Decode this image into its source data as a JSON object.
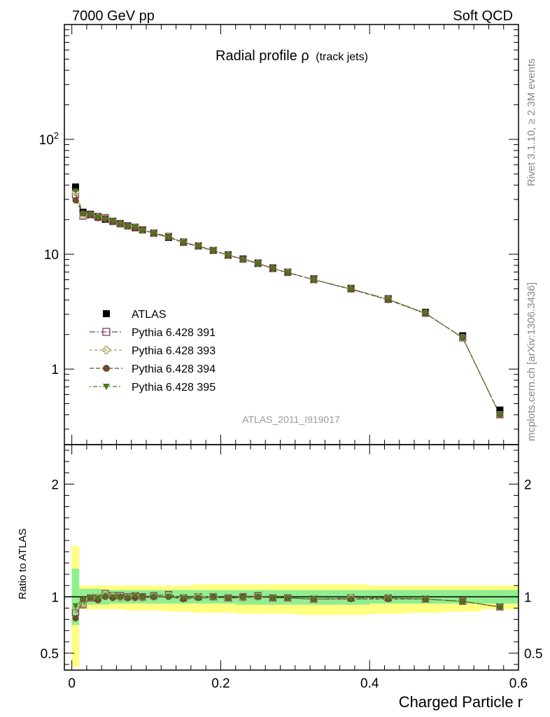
{
  "header": {
    "energy_label": "7000 GeV pp",
    "process_label": "Soft QCD"
  },
  "side_labels": {
    "rivet": "Rivet 3.1.10, ≥ 2.3M events",
    "mcplots": "mcplots.cern.ch [arXiv:1306.3436]"
  },
  "chart_data": [
    {
      "type": "scatter",
      "title": "Radial profile ρ",
      "subtitle": "(track jets)",
      "analysis_tag": "ATLAS_2011_I919017",
      "xlabel": "Charged Particle r",
      "ylabel": "",
      "xlim": [
        -0.01,
        0.6
      ],
      "ylim": [
        0.22,
        1000
      ],
      "yscale": "log",
      "y_tick_labels": [
        "1",
        "10",
        "10^2"
      ],
      "x_tick_labels": [
        "0",
        "0.2",
        "0.4",
        "0.6"
      ],
      "legend_position": "middle-left",
      "x": [
        0.005,
        0.015,
        0.025,
        0.035,
        0.045,
        0.055,
        0.065,
        0.075,
        0.085,
        0.095,
        0.11,
        0.13,
        0.15,
        0.17,
        0.19,
        0.21,
        0.23,
        0.25,
        0.27,
        0.29,
        0.325,
        0.375,
        0.425,
        0.475,
        0.525,
        0.575
      ],
      "series": [
        {
          "name": "ATLAS",
          "marker": "filled-square",
          "color": "#000000",
          "values": [
            38.5,
            23.2,
            22.3,
            21.3,
            20.2,
            19.3,
            18.4,
            17.7,
            17.0,
            16.3,
            15.2,
            14.0,
            12.8,
            11.8,
            10.8,
            9.9,
            9.1,
            8.3,
            7.6,
            7.0,
            6.1,
            5.05,
            4.1,
            3.12,
            1.95,
            0.44
          ]
        },
        {
          "name": "Pythia 6.428 391",
          "marker": "open-square",
          "color": "#7a3e5a",
          "values": [
            33.0,
            21.5,
            22.0,
            21.0,
            20.8,
            19.4,
            18.5,
            17.7,
            17.2,
            16.3,
            15.3,
            14.3,
            12.7,
            11.8,
            10.8,
            9.8,
            9.1,
            8.4,
            7.5,
            6.95,
            6.0,
            5.0,
            4.05,
            3.07,
            1.87,
            0.4
          ]
        },
        {
          "name": "Pythia 6.428 393",
          "marker": "open-cross",
          "color": "#a8a05a",
          "values": [
            34.5,
            21.8,
            22.0,
            21.1,
            20.5,
            19.5,
            18.3,
            17.5,
            17.2,
            16.2,
            15.2,
            14.2,
            12.7,
            11.8,
            10.8,
            9.8,
            9.0,
            8.3,
            7.5,
            6.95,
            6.0,
            5.0,
            4.05,
            3.05,
            1.88,
            0.4
          ]
        },
        {
          "name": "Pythia 6.428 394",
          "marker": "filled-circle",
          "color": "#6b4a2e",
          "values": [
            29.5,
            22.8,
            22.1,
            20.6,
            20.3,
            19.1,
            18.4,
            17.6,
            16.9,
            16.3,
            15.2,
            14.0,
            12.6,
            11.7,
            10.8,
            9.8,
            9.1,
            8.3,
            7.5,
            6.9,
            6.0,
            4.95,
            4.0,
            3.05,
            1.88,
            0.4
          ]
        },
        {
          "name": "Pythia 6.428 395",
          "marker": "filled-triangle-down",
          "color": "#4a7a1e",
          "values": [
            35.5,
            22.5,
            22.1,
            21.0,
            20.2,
            19.3,
            18.3,
            17.5,
            17.2,
            16.2,
            15.2,
            14.0,
            12.7,
            11.7,
            10.7,
            9.8,
            9.0,
            8.3,
            7.5,
            6.95,
            6.0,
            4.95,
            4.05,
            3.05,
            1.88,
            0.4
          ]
        }
      ]
    },
    {
      "type": "scatter",
      "title": "",
      "xlabel": "Charged Particle r",
      "ylabel": "Ratio to ATLAS",
      "xlim": [
        -0.01,
        0.6
      ],
      "ylim": [
        0.35,
        2.35
      ],
      "y_tick_labels": [
        "0.5",
        "1",
        "2"
      ],
      "x_tick_labels": [
        "0",
        "0.2",
        "0.4",
        "0.6"
      ],
      "reference_line": 1.0,
      "band_colors": {
        "inner": "#90ee90",
        "outer": "#ffff80"
      },
      "bands": {
        "x_edges": [
          0.0,
          0.01,
          0.02,
          0.03,
          0.04,
          0.05,
          0.06,
          0.07,
          0.08,
          0.09,
          0.1,
          0.12,
          0.14,
          0.16,
          0.18,
          0.2,
          0.22,
          0.24,
          0.26,
          0.28,
          0.3,
          0.35,
          0.4,
          0.45,
          0.5,
          0.55,
          0.6
        ],
        "inner_low": [
          0.75,
          0.92,
          0.93,
          0.93,
          0.93,
          0.94,
          0.94,
          0.94,
          0.94,
          0.94,
          0.94,
          0.94,
          0.94,
          0.94,
          0.94,
          0.94,
          0.93,
          0.93,
          0.93,
          0.93,
          0.93,
          0.93,
          0.94,
          0.94,
          0.94,
          0.94
        ],
        "inner_high": [
          1.25,
          1.07,
          1.07,
          1.07,
          1.06,
          1.06,
          1.06,
          1.06,
          1.06,
          1.06,
          1.06,
          1.06,
          1.06,
          1.06,
          1.06,
          1.06,
          1.06,
          1.06,
          1.06,
          1.06,
          1.06,
          1.06,
          1.06,
          1.06,
          1.06,
          1.06
        ],
        "outer_low": [
          0.38,
          0.89,
          0.89,
          0.89,
          0.89,
          0.89,
          0.89,
          0.88,
          0.88,
          0.88,
          0.88,
          0.87,
          0.87,
          0.86,
          0.86,
          0.86,
          0.85,
          0.85,
          0.85,
          0.85,
          0.84,
          0.84,
          0.85,
          0.86,
          0.87,
          0.89
        ],
        "outer_high": [
          1.45,
          1.1,
          1.1,
          1.1,
          1.1,
          1.1,
          1.1,
          1.1,
          1.1,
          1.1,
          1.1,
          1.1,
          1.1,
          1.11,
          1.11,
          1.11,
          1.11,
          1.11,
          1.11,
          1.11,
          1.11,
          1.11,
          1.1,
          1.1,
          1.1,
          1.1
        ]
      },
      "x": [
        0.005,
        0.015,
        0.025,
        0.035,
        0.045,
        0.055,
        0.065,
        0.075,
        0.085,
        0.095,
        0.11,
        0.13,
        0.15,
        0.17,
        0.19,
        0.21,
        0.23,
        0.25,
        0.27,
        0.29,
        0.325,
        0.375,
        0.425,
        0.475,
        0.525,
        0.575
      ],
      "series": [
        {
          "name": "Pythia 6.428 391",
          "marker": "open-square",
          "color": "#7a3e5a",
          "values": [
            0.86,
            0.93,
            0.99,
            0.99,
            1.03,
            1.01,
            1.01,
            1.0,
            1.01,
            1.0,
            1.01,
            1.02,
            0.99,
            1.0,
            1.0,
            0.99,
            1.0,
            1.01,
            0.99,
            0.99,
            0.98,
            0.99,
            0.99,
            0.98,
            0.96,
            0.91
          ]
        },
        {
          "name": "Pythia 6.428 393",
          "marker": "open-cross",
          "color": "#a8a05a",
          "values": [
            0.9,
            0.94,
            0.99,
            0.99,
            1.01,
            1.01,
            0.99,
            0.99,
            1.01,
            0.99,
            1.0,
            1.01,
            0.99,
            1.0,
            1.0,
            0.99,
            0.99,
            1.0,
            0.99,
            0.99,
            0.98,
            0.99,
            0.99,
            0.98,
            0.96,
            0.91
          ]
        },
        {
          "name": "Pythia 6.428 394",
          "marker": "filled-circle",
          "color": "#6b4a2e",
          "values": [
            0.81,
            0.98,
            0.99,
            0.97,
            1.0,
            0.99,
            1.0,
            0.99,
            0.99,
            1.0,
            1.0,
            1.0,
            0.98,
            0.99,
            1.0,
            0.99,
            1.0,
            1.0,
            0.99,
            0.99,
            0.98,
            0.98,
            0.98,
            0.98,
            0.96,
            0.91
          ]
        },
        {
          "name": "Pythia 6.428 395",
          "marker": "filled-triangle-down",
          "color": "#4a7a1e",
          "values": [
            0.92,
            0.97,
            0.99,
            0.99,
            1.0,
            1.0,
            0.99,
            0.99,
            1.01,
            0.99,
            1.0,
            1.0,
            0.99,
            0.99,
            0.99,
            0.99,
            0.99,
            1.0,
            0.99,
            0.99,
            0.98,
            0.98,
            0.99,
            0.98,
            0.96,
            0.91
          ]
        }
      ]
    }
  ]
}
